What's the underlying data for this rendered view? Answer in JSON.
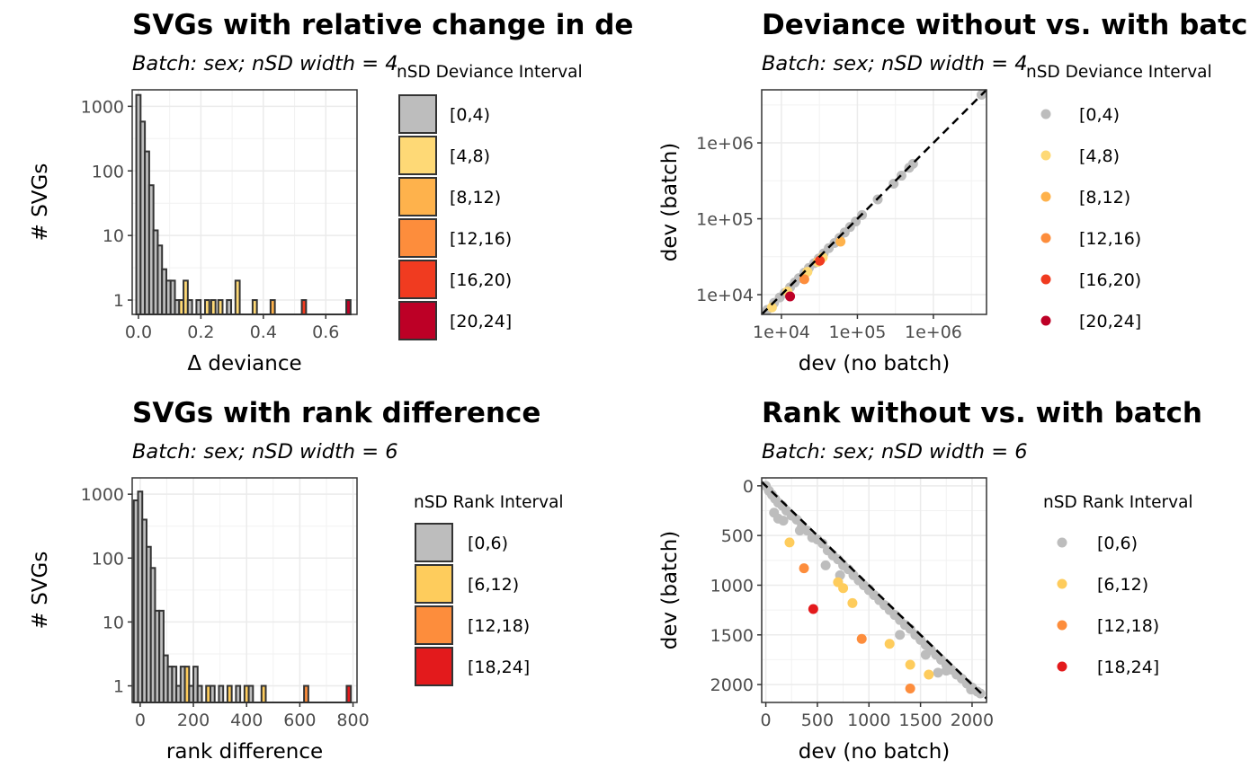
{
  "chart_data": [
    {
      "type": "histogram",
      "title": "SVGs with relative change in de",
      "subtitle": "Batch: sex; nSD width = 4",
      "xlabel": "Δ deviance",
      "ylabel": "# SVGs",
      "xlim": [
        -0.02,
        0.7
      ],
      "ylim_log10": [
        0.6,
        1800
      ],
      "y_scale": "log10",
      "x_ticks": [
        0.0,
        0.2,
        0.4,
        0.6
      ],
      "x_tick_labels": [
        "0.0",
        "0.2",
        "0.4",
        "0.6"
      ],
      "y_ticks": [
        1,
        10,
        100,
        1000
      ],
      "y_tick_labels": [
        "1",
        "10",
        "100",
        "1000"
      ],
      "bin_width": 0.01375,
      "legend_title": "nSD Deviance Interval",
      "legend": [
        {
          "label": "[0,4)",
          "color": "#bdbdbd"
        },
        {
          "label": "[4,8)",
          "color": "#fed976"
        },
        {
          "label": "[8,12)",
          "color": "#feb24c"
        },
        {
          "label": "[12,16)",
          "color": "#fd8d3c"
        },
        {
          "label": "[16,20)",
          "color": "#f03b20"
        },
        {
          "label": "[20,24]",
          "color": "#bd0026"
        }
      ],
      "bins": [
        {
          "x": 0.0,
          "count": 1500,
          "group": 0
        },
        {
          "x": 0.01375,
          "count": 580,
          "group": 0
        },
        {
          "x": 0.0275,
          "count": 200,
          "group": 0
        },
        {
          "x": 0.04125,
          "count": 60,
          "group": 0
        },
        {
          "x": 0.055,
          "count": 12,
          "group": 0
        },
        {
          "x": 0.06875,
          "count": 7,
          "group": 0
        },
        {
          "x": 0.0825,
          "count": 3,
          "group": 0
        },
        {
          "x": 0.09625,
          "count": 2,
          "group": 0
        },
        {
          "x": 0.11,
          "count": 2,
          "group": 0
        },
        {
          "x": 0.12375,
          "count": 1,
          "group": 0
        },
        {
          "x": 0.1375,
          "count": 1,
          "group": 1
        },
        {
          "x": 0.15125,
          "count": 2,
          "group": 1
        },
        {
          "x": 0.165,
          "count": 1,
          "group": 0
        },
        {
          "x": 0.1925,
          "count": 1,
          "group": 0
        },
        {
          "x": 0.22,
          "count": 1,
          "group": 1
        },
        {
          "x": 0.24,
          "count": 1,
          "group": 1
        },
        {
          "x": 0.2625,
          "count": 1,
          "group": 1
        },
        {
          "x": 0.29,
          "count": 1,
          "group": 0
        },
        {
          "x": 0.3175,
          "count": 2,
          "group": 1
        },
        {
          "x": 0.3725,
          "count": 1,
          "group": 1
        },
        {
          "x": 0.43,
          "count": 1,
          "group": 2
        },
        {
          "x": 0.53,
          "count": 1,
          "group": 4
        },
        {
          "x": 0.6725,
          "count": 1,
          "group": 5
        }
      ]
    },
    {
      "type": "scatter",
      "title": "Deviance without vs. with batc",
      "subtitle": "Batch: sex; nSD width = 4",
      "xlabel": "dev (no batch)",
      "ylabel": "dev (batch)",
      "x_scale": "log10",
      "y_scale": "log10",
      "xlim": [
        5500,
        5000000
      ],
      "ylim": [
        5500,
        5000000
      ],
      "x_ticks": [
        10000,
        100000,
        1000000
      ],
      "x_tick_labels": [
        "1e+04",
        "1e+05",
        "1e+06"
      ],
      "y_ticks": [
        10000,
        100000,
        1000000
      ],
      "y_tick_labels": [
        "1e+04",
        "1e+05",
        "1e+06"
      ],
      "reference_line": "y = x (dashed)",
      "legend_title": "nSD Deviance Interval",
      "legend": [
        {
          "label": "[0,4)",
          "color": "#bdbdbd"
        },
        {
          "label": "[4,8)",
          "color": "#fed976"
        },
        {
          "label": "[8,12)",
          "color": "#feb24c"
        },
        {
          "label": "[12,16)",
          "color": "#fd8d3c"
        },
        {
          "label": "[16,20)",
          "color": "#f03b20"
        },
        {
          "label": "[20,24]",
          "color": "#bd0026"
        }
      ],
      "points": [
        {
          "x": 6500,
          "y": 6300,
          "group": 0
        },
        {
          "x": 8000,
          "y": 7800,
          "group": 0
        },
        {
          "x": 9500,
          "y": 9200,
          "group": 0
        },
        {
          "x": 11000,
          "y": 10500,
          "group": 0
        },
        {
          "x": 13000,
          "y": 12500,
          "group": 0
        },
        {
          "x": 15000,
          "y": 14500,
          "group": 0
        },
        {
          "x": 17000,
          "y": 16500,
          "group": 0
        },
        {
          "x": 20000,
          "y": 19500,
          "group": 0
        },
        {
          "x": 23000,
          "y": 22500,
          "group": 0
        },
        {
          "x": 27000,
          "y": 26000,
          "group": 0
        },
        {
          "x": 31000,
          "y": 30000,
          "group": 0
        },
        {
          "x": 36000,
          "y": 35000,
          "group": 0
        },
        {
          "x": 42000,
          "y": 41000,
          "group": 0
        },
        {
          "x": 50000,
          "y": 48000,
          "group": 0
        },
        {
          "x": 58000,
          "y": 56000,
          "group": 0
        },
        {
          "x": 68000,
          "y": 66000,
          "group": 0
        },
        {
          "x": 80000,
          "y": 78000,
          "group": 0
        },
        {
          "x": 95000,
          "y": 92000,
          "group": 0
        },
        {
          "x": 115000,
          "y": 112000,
          "group": 0
        },
        {
          "x": 185000,
          "y": 180000,
          "group": 0
        },
        {
          "x": 300000,
          "y": 290000,
          "group": 0
        },
        {
          "x": 380000,
          "y": 370000,
          "group": 0
        },
        {
          "x": 480000,
          "y": 470000,
          "group": 0
        },
        {
          "x": 540000,
          "y": 530000,
          "group": 0
        },
        {
          "x": 4300000,
          "y": 4300000,
          "group": 0
        },
        {
          "x": 7500,
          "y": 6800,
          "group": 1
        },
        {
          "x": 12000,
          "y": 11000,
          "group": 1
        },
        {
          "x": 22000,
          "y": 20000,
          "group": 1
        },
        {
          "x": 30000,
          "y": 27000,
          "group": 1
        },
        {
          "x": 35000,
          "y": 31000,
          "group": 1
        },
        {
          "x": 60000,
          "y": 50000,
          "group": 2
        },
        {
          "x": 20000,
          "y": 16000,
          "group": 3
        },
        {
          "x": 32000,
          "y": 28000,
          "group": 4
        },
        {
          "x": 13000,
          "y": 9500,
          "group": 5
        }
      ]
    },
    {
      "type": "histogram",
      "title": "SVGs with rank difference",
      "subtitle": "Batch: sex; nSD width = 6",
      "xlabel": "rank difference",
      "ylabel": "# SVGs",
      "xlim": [
        -30,
        815
      ],
      "ylim_log10": [
        0.55,
        1800
      ],
      "y_scale": "log10",
      "x_ticks": [
        0,
        200,
        400,
        600,
        800
      ],
      "x_tick_labels": [
        "0",
        "200",
        "400",
        "600",
        "800"
      ],
      "y_ticks": [
        1,
        10,
        100,
        1000
      ],
      "y_tick_labels": [
        "1",
        "10",
        "100",
        "1000"
      ],
      "bin_width": 16,
      "legend_title": "nSD Rank Interval",
      "legend": [
        {
          "label": "[0,6)",
          "color": "#bdbdbd"
        },
        {
          "label": "[6,12)",
          "color": "#fecc5c"
        },
        {
          "label": "[12,18)",
          "color": "#fd8d3c"
        },
        {
          "label": "[18,24]",
          "color": "#e31a1c"
        }
      ],
      "bins": [
        {
          "x": -16,
          "count": 800,
          "group": 0
        },
        {
          "x": 0,
          "count": 1100,
          "group": 0
        },
        {
          "x": 16,
          "count": 400,
          "group": 0
        },
        {
          "x": 32,
          "count": 150,
          "group": 0
        },
        {
          "x": 48,
          "count": 70,
          "group": 0
        },
        {
          "x": 64,
          "count": 15,
          "group": 0
        },
        {
          "x": 80,
          "count": 15,
          "group": 0
        },
        {
          "x": 96,
          "count": 3,
          "group": 0
        },
        {
          "x": 112,
          "count": 2,
          "group": 0
        },
        {
          "x": 128,
          "count": 2,
          "group": 0
        },
        {
          "x": 144,
          "count": 1,
          "group": 0
        },
        {
          "x": 160,
          "count": 2,
          "group": 0
        },
        {
          "x": 176,
          "count": 2,
          "group": 1
        },
        {
          "x": 192,
          "count": 1,
          "group": 0
        },
        {
          "x": 208,
          "count": 2,
          "group": 0
        },
        {
          "x": 224,
          "count": 1,
          "group": 0
        },
        {
          "x": 256,
          "count": 1,
          "group": 1
        },
        {
          "x": 272,
          "count": 1,
          "group": 0
        },
        {
          "x": 304,
          "count": 1,
          "group": 0
        },
        {
          "x": 336,
          "count": 1,
          "group": 1
        },
        {
          "x": 368,
          "count": 1,
          "group": 0
        },
        {
          "x": 400,
          "count": 1,
          "group": 1
        },
        {
          "x": 416,
          "count": 1,
          "group": 0
        },
        {
          "x": 464,
          "count": 1,
          "group": 1
        },
        {
          "x": 624,
          "count": 1,
          "group": 2
        },
        {
          "x": 784,
          "count": 1,
          "group": 3
        }
      ]
    },
    {
      "type": "scatter",
      "title": "Rank without vs. with batch",
      "subtitle": "Batch: sex; nSD width = 6",
      "xlabel": "dev (no batch)",
      "ylabel": "dev (batch)",
      "xlim": [
        -40,
        2140
      ],
      "ylim": [
        2180,
        -80
      ],
      "y_reversed": true,
      "x_ticks": [
        0,
        500,
        1000,
        1500,
        2000
      ],
      "x_tick_labels": [
        "0",
        "500",
        "1000",
        "1500",
        "2000"
      ],
      "y_ticks": [
        0,
        500,
        1000,
        1500,
        2000
      ],
      "y_tick_labels": [
        "0",
        "500",
        "1000",
        "1500",
        "2000"
      ],
      "reference_line": "y = x (dashed)",
      "legend_title": "nSD Rank Interval",
      "legend": [
        {
          "label": "[0,6)",
          "color": "#bdbdbd"
        },
        {
          "label": "[6,12)",
          "color": "#fecc5c"
        },
        {
          "label": "[12,18)",
          "color": "#fd8d3c"
        },
        {
          "label": "[18,24]",
          "color": "#e31a1c"
        }
      ],
      "points": [
        {
          "x": 0,
          "y": 0,
          "group": 0
        },
        {
          "x": 30,
          "y": 50,
          "group": 0
        },
        {
          "x": 60,
          "y": 90,
          "group": 0
        },
        {
          "x": 90,
          "y": 130,
          "group": 0
        },
        {
          "x": 120,
          "y": 170,
          "group": 0
        },
        {
          "x": 160,
          "y": 200,
          "group": 0
        },
        {
          "x": 200,
          "y": 250,
          "group": 0
        },
        {
          "x": 250,
          "y": 300,
          "group": 0
        },
        {
          "x": 300,
          "y": 340,
          "group": 0
        },
        {
          "x": 350,
          "y": 400,
          "group": 0
        },
        {
          "x": 400,
          "y": 450,
          "group": 0
        },
        {
          "x": 450,
          "y": 520,
          "group": 0
        },
        {
          "x": 500,
          "y": 540,
          "group": 0
        },
        {
          "x": 550,
          "y": 580,
          "group": 0
        },
        {
          "x": 600,
          "y": 650,
          "group": 0
        },
        {
          "x": 650,
          "y": 700,
          "group": 0
        },
        {
          "x": 700,
          "y": 740,
          "group": 0
        },
        {
          "x": 750,
          "y": 800,
          "group": 0
        },
        {
          "x": 800,
          "y": 840,
          "group": 0
        },
        {
          "x": 850,
          "y": 900,
          "group": 0
        },
        {
          "x": 900,
          "y": 950,
          "group": 0
        },
        {
          "x": 950,
          "y": 1000,
          "group": 0
        },
        {
          "x": 1000,
          "y": 1040,
          "group": 0
        },
        {
          "x": 1050,
          "y": 1100,
          "group": 0
        },
        {
          "x": 1100,
          "y": 1150,
          "group": 0
        },
        {
          "x": 1150,
          "y": 1200,
          "group": 0
        },
        {
          "x": 1200,
          "y": 1250,
          "group": 0
        },
        {
          "x": 1250,
          "y": 1300,
          "group": 0
        },
        {
          "x": 1300,
          "y": 1350,
          "group": 0
        },
        {
          "x": 1350,
          "y": 1400,
          "group": 0
        },
        {
          "x": 1400,
          "y": 1440,
          "group": 0
        },
        {
          "x": 1450,
          "y": 1500,
          "group": 0
        },
        {
          "x": 1500,
          "y": 1550,
          "group": 0
        },
        {
          "x": 1550,
          "y": 1600,
          "group": 0
        },
        {
          "x": 1600,
          "y": 1650,
          "group": 0
        },
        {
          "x": 1650,
          "y": 1700,
          "group": 0
        },
        {
          "x": 1700,
          "y": 1750,
          "group": 0
        },
        {
          "x": 1750,
          "y": 1800,
          "group": 0
        },
        {
          "x": 1800,
          "y": 1850,
          "group": 0
        },
        {
          "x": 1850,
          "y": 1900,
          "group": 0
        },
        {
          "x": 1900,
          "y": 1940,
          "group": 0
        },
        {
          "x": 1950,
          "y": 1990,
          "group": 0
        },
        {
          "x": 2000,
          "y": 2030,
          "group": 0
        },
        {
          "x": 2050,
          "y": 2070,
          "group": 0
        },
        {
          "x": 2080,
          "y": 2090,
          "group": 0
        },
        {
          "x": 80,
          "y": 270,
          "group": 0
        },
        {
          "x": 120,
          "y": 330,
          "group": 0
        },
        {
          "x": 170,
          "y": 350,
          "group": 0
        },
        {
          "x": 330,
          "y": 450,
          "group": 0
        },
        {
          "x": 580,
          "y": 800,
          "group": 0
        },
        {
          "x": 720,
          "y": 900,
          "group": 0
        },
        {
          "x": 1000,
          "y": 1050,
          "group": 0
        },
        {
          "x": 1300,
          "y": 1500,
          "group": 0
        },
        {
          "x": 1550,
          "y": 1700,
          "group": 0
        },
        {
          "x": 1750,
          "y": 1860,
          "group": 0
        },
        {
          "x": 1670,
          "y": 1880,
          "group": 0
        },
        {
          "x": 1990,
          "y": 2050,
          "group": 0
        },
        {
          "x": 230,
          "y": 570,
          "group": 1
        },
        {
          "x": 700,
          "y": 970,
          "group": 1
        },
        {
          "x": 750,
          "y": 1030,
          "group": 1
        },
        {
          "x": 840,
          "y": 1180,
          "group": 1
        },
        {
          "x": 1200,
          "y": 1590,
          "group": 1
        },
        {
          "x": 1400,
          "y": 1800,
          "group": 1
        },
        {
          "x": 1580,
          "y": 1900,
          "group": 1
        },
        {
          "x": 370,
          "y": 830,
          "group": 2
        },
        {
          "x": 930,
          "y": 1540,
          "group": 2
        },
        {
          "x": 1400,
          "y": 2040,
          "group": 2
        },
        {
          "x": 460,
          "y": 1240,
          "group": 3
        }
      ]
    }
  ]
}
